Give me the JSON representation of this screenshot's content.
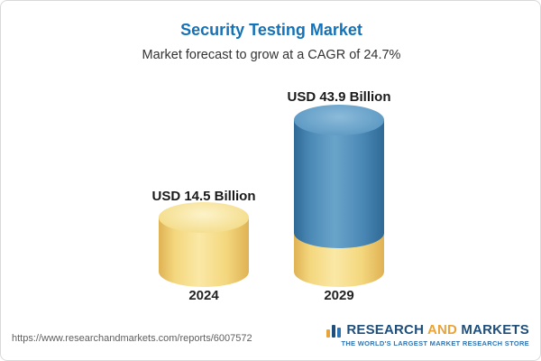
{
  "header": {
    "title": "Security Testing Market",
    "subtitle": "Market forecast to grow at a CAGR of 24.7%"
  },
  "chart_data": {
    "type": "bar",
    "subtype": "3d-cylinder",
    "title": "Security Testing Market",
    "subtitle": "Market forecast to grow at a CAGR of 24.7%",
    "cagr_percent": 24.7,
    "categories": [
      "2024",
      "2029"
    ],
    "values": [
      14.5,
      43.9
    ],
    "unit": "USD Billion",
    "value_labels": [
      "USD 14.5 Billion",
      "USD 43.9 Billion"
    ],
    "legend_position": "none",
    "grid": false,
    "colors": {
      "bar_2024": "#f4d77e",
      "bar_2029_growth": "#4c89b6",
      "bar_2029_base": "#f4d77e",
      "title": "#1473b8"
    }
  },
  "footer": {
    "url": "https://www.researchandmarkets.com/reports/6007572",
    "logo": {
      "word1": "RESEARCH",
      "word2": "AND",
      "word3": "MARKETS",
      "tagline": "THE WORLD'S LARGEST MARKET RESEARCH STORE"
    }
  }
}
